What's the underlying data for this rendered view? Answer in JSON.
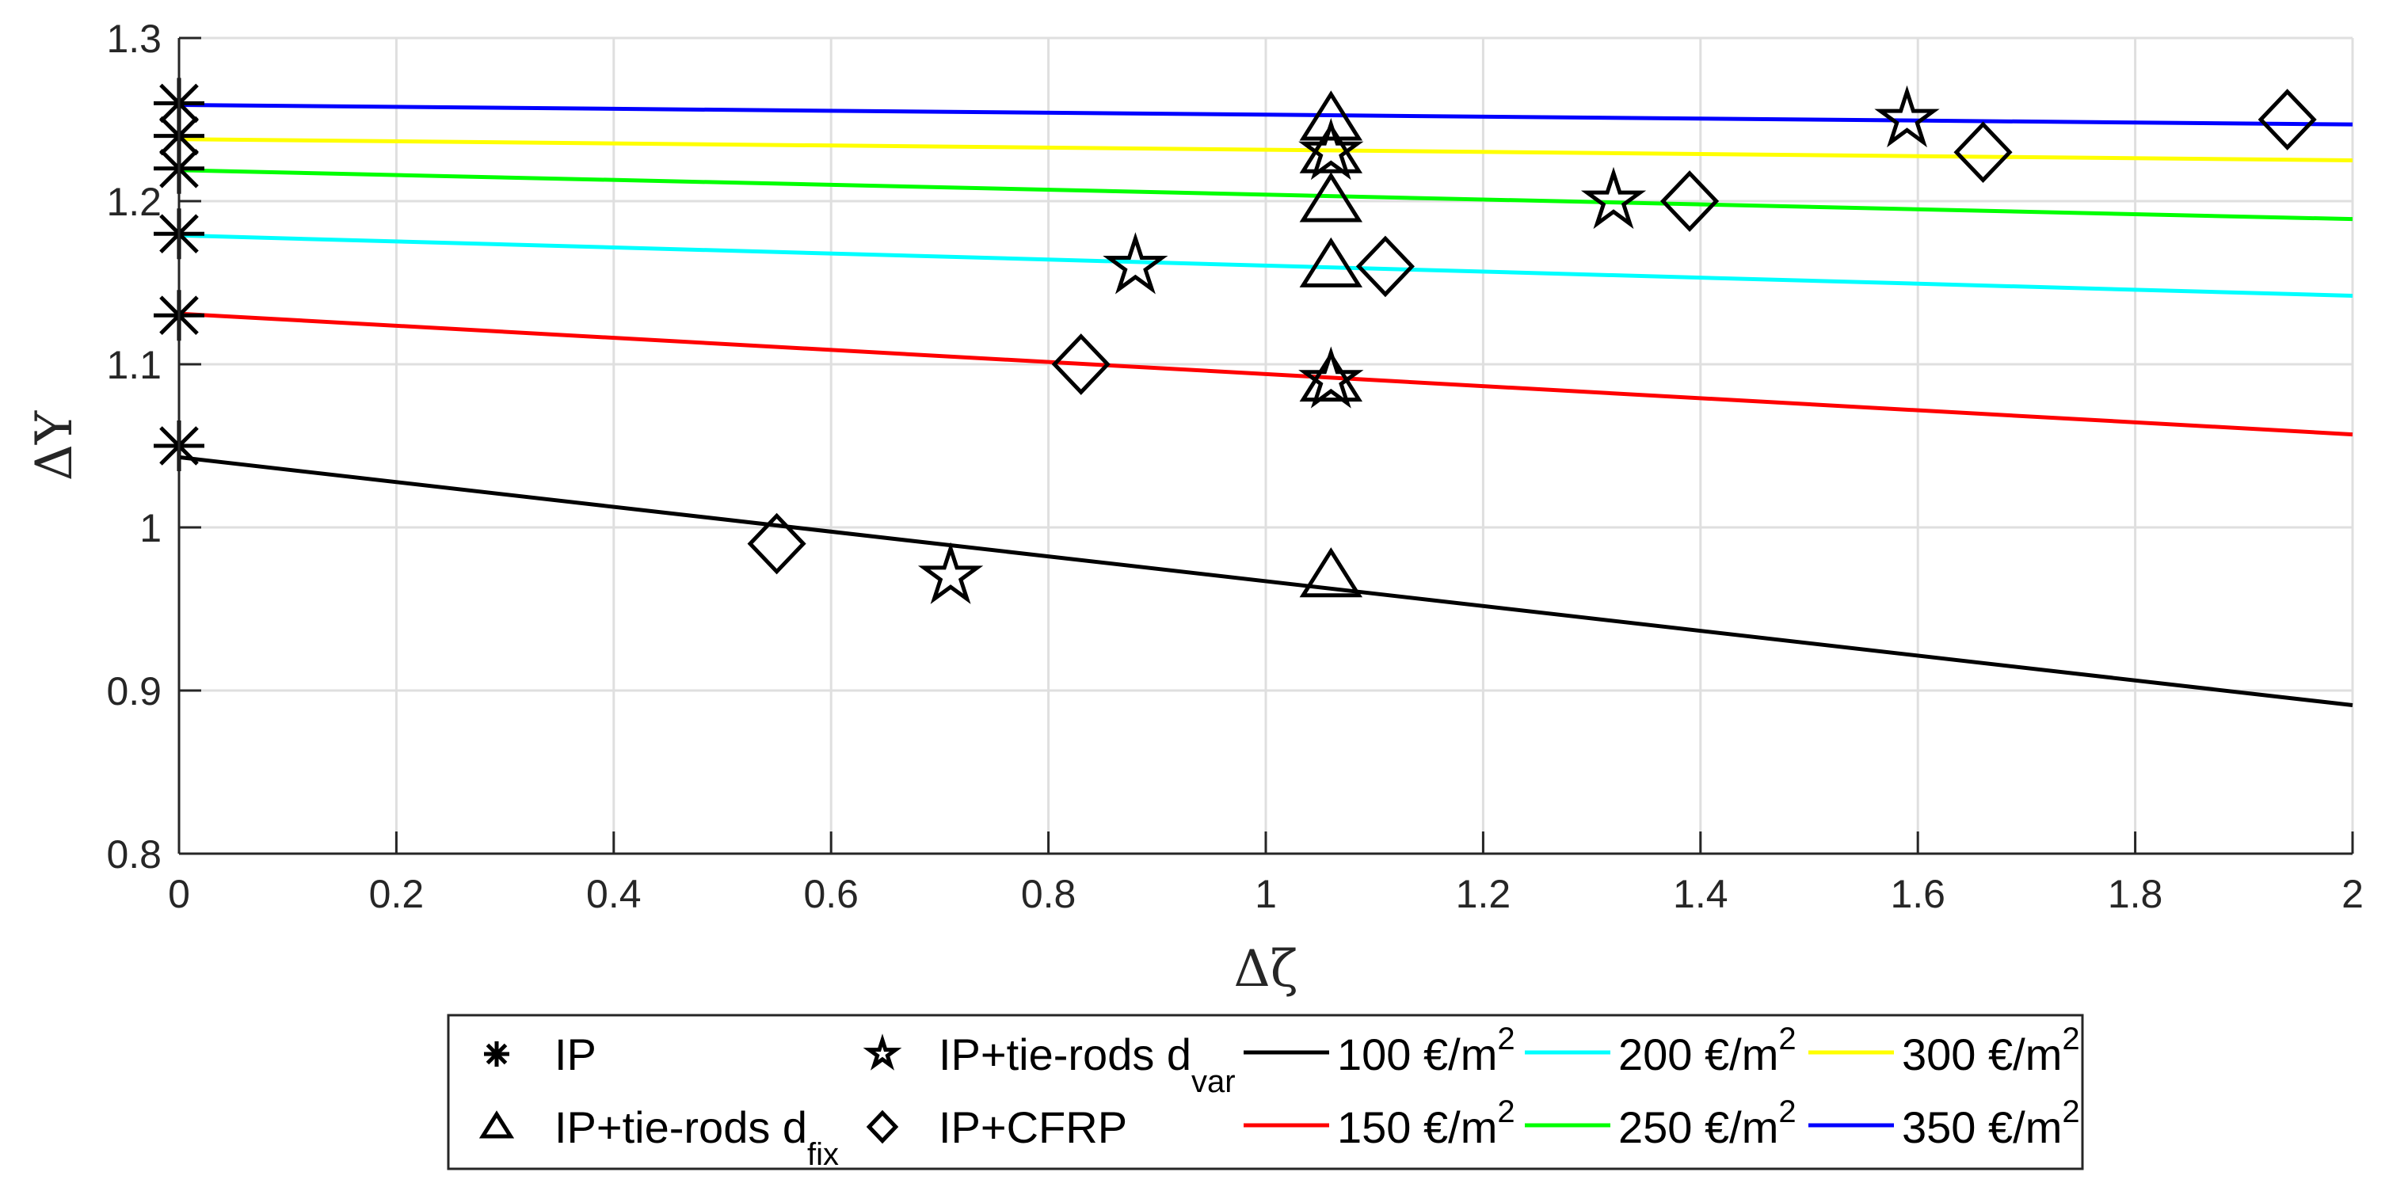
{
  "chart_data": {
    "type": "scatter",
    "xlabel": "Δζ",
    "ylabel": "ΔΥ",
    "xlim": [
      0,
      2
    ],
    "ylim": [
      0.8,
      1.3
    ],
    "xticks": [
      "0",
      "0.2",
      "0.4",
      "0.6",
      "0.8",
      "1",
      "1.2",
      "1.4",
      "1.6",
      "1.8",
      "2"
    ],
    "yticks": [
      "0.8",
      "0.9",
      "1",
      "1.1",
      "1.2",
      "1.3"
    ],
    "grid": true,
    "legend_placement": "bottom-outside",
    "marker_series": [
      {
        "name": "IP",
        "marker": "asterisk",
        "points": [
          [
            0,
            1.26
          ],
          [
            0,
            1.24
          ],
          [
            0,
            1.22
          ],
          [
            0,
            1.18
          ],
          [
            0,
            1.13
          ],
          [
            0,
            1.05
          ]
        ]
      },
      {
        "name": "IP+tie-rods d",
        "sub": "fix",
        "marker": "triangle",
        "points": [
          [
            1.06,
            1.25
          ],
          [
            1.06,
            1.23
          ],
          [
            1.06,
            1.2
          ],
          [
            1.06,
            1.16
          ],
          [
            1.06,
            1.09
          ],
          [
            1.06,
            0.97
          ]
        ]
      },
      {
        "name": "IP+tie-rods d",
        "sub": "var",
        "marker": "pentagram",
        "points": [
          [
            0.71,
            0.97
          ],
          [
            0.88,
            1.16
          ],
          [
            1.06,
            1.09
          ],
          [
            1.06,
            1.23
          ],
          [
            1.32,
            1.2
          ],
          [
            1.59,
            1.25
          ]
        ]
      },
      {
        "name": "IP+CFRP",
        "sub": "",
        "marker": "diamond",
        "points": [
          [
            0.55,
            0.99
          ],
          [
            0.83,
            1.1
          ],
          [
            1.11,
            1.16
          ],
          [
            1.39,
            1.2
          ],
          [
            1.66,
            1.23
          ],
          [
            1.94,
            1.25
          ]
        ]
      }
    ],
    "line_series": [
      {
        "name": "100 €/m",
        "sup": "2",
        "color": "#000000",
        "x": [
          0,
          2
        ],
        "y": [
          1.043,
          0.891
        ]
      },
      {
        "name": "150 €/m",
        "sup": "2",
        "color": "#ff0000",
        "x": [
          0,
          2
        ],
        "y": [
          1.131,
          1.057
        ]
      },
      {
        "name": "200 €/m",
        "sup": "2",
        "color": "#00ffff",
        "x": [
          0,
          2
        ],
        "y": [
          1.179,
          1.142
        ]
      },
      {
        "name": "250 €/m",
        "sup": "2",
        "color": "#00ff00",
        "x": [
          0,
          2
        ],
        "y": [
          1.219,
          1.189
        ]
      },
      {
        "name": "300 €/m",
        "sup": "2",
        "color": "#ffff00",
        "x": [
          0,
          2
        ],
        "y": [
          1.238,
          1.225
        ]
      },
      {
        "name": "350 €/m",
        "sup": "2",
        "color": "#0000ff",
        "x": [
          0,
          2
        ],
        "y": [
          1.259,
          1.247
        ]
      }
    ]
  }
}
